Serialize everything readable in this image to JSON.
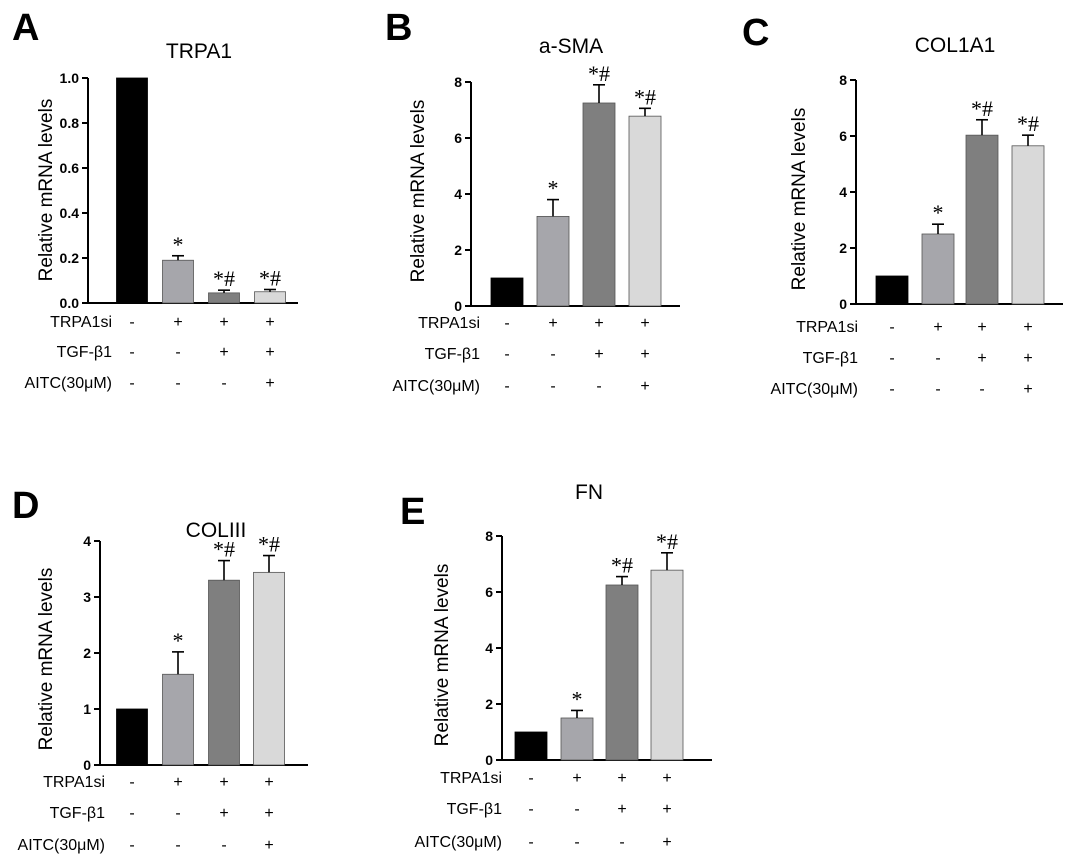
{
  "figure": {
    "background": "#ffffff"
  },
  "chart_data": [
    {
      "panel": "A",
      "type": "bar",
      "title": "TRPA1",
      "ylabel": "Relative mRNA levels",
      "ylim": [
        0,
        1.0
      ],
      "yticks": [
        "0.0",
        "0.2",
        "0.4",
        "0.6",
        "0.8",
        "1.0"
      ],
      "ytick_values": [
        0,
        0.2,
        0.4,
        0.6,
        0.8,
        1.0
      ],
      "values": [
        1.0,
        0.19,
        0.045,
        0.05
      ],
      "errors": [
        0,
        0.02,
        0.012,
        0.01
      ],
      "annotations": [
        "",
        "*",
        "*#",
        "*#"
      ],
      "colors": [
        "#000000",
        "#a6a6ab",
        "#7f7f7f",
        "#d9d9d9"
      ],
      "conditions": [
        {
          "label": "TRPA1si",
          "signs": [
            "-",
            "+",
            "+",
            "+"
          ]
        },
        {
          "label": "TGF-β1",
          "signs": [
            "-",
            "-",
            "+",
            "+"
          ]
        },
        {
          "label": "AITC(30μM)",
          "signs": [
            "-",
            "-",
            "-",
            "+"
          ]
        }
      ]
    },
    {
      "panel": "B",
      "type": "bar",
      "title": "a-SMA",
      "ylabel": "Relative mRNA levels",
      "ylim": [
        0,
        8
      ],
      "yticks": [
        "0",
        "2",
        "4",
        "6",
        "8"
      ],
      "ytick_values": [
        0,
        2,
        4,
        6,
        8
      ],
      "values": [
        1.0,
        3.2,
        7.25,
        6.78
      ],
      "errors": [
        0,
        0.6,
        0.65,
        0.28
      ],
      "annotations": [
        "",
        "*",
        "*#",
        "*#"
      ],
      "colors": [
        "#000000",
        "#a6a6ab",
        "#7f7f7f",
        "#d9d9d9"
      ],
      "conditions": [
        {
          "label": "TRPA1si",
          "signs": [
            "-",
            "+",
            "+",
            "+"
          ]
        },
        {
          "label": "TGF-β1",
          "signs": [
            "-",
            "-",
            "+",
            "+"
          ]
        },
        {
          "label": "AITC(30μM)",
          "signs": [
            "-",
            "-",
            "-",
            "+"
          ]
        }
      ]
    },
    {
      "panel": "C",
      "type": "bar",
      "title": "COL1A1",
      "ylabel": "Relative mRNA levels",
      "ylim": [
        0,
        8
      ],
      "yticks": [
        "0",
        "2",
        "4",
        "6",
        "8"
      ],
      "ytick_values": [
        0,
        2,
        4,
        6,
        8
      ],
      "values": [
        1.0,
        2.5,
        6.03,
        5.65
      ],
      "errors": [
        0,
        0.35,
        0.55,
        0.38
      ],
      "annotations": [
        "",
        "*",
        "*#",
        "*#"
      ],
      "colors": [
        "#000000",
        "#a6a6ab",
        "#7f7f7f",
        "#d9d9d9"
      ],
      "conditions": [
        {
          "label": "TRPA1si",
          "signs": [
            "-",
            "+",
            "+",
            "+"
          ]
        },
        {
          "label": "TGF-β1",
          "signs": [
            "-",
            "-",
            "+",
            "+"
          ]
        },
        {
          "label": "AITC(30μM)",
          "signs": [
            "-",
            "-",
            "-",
            "+"
          ]
        }
      ]
    },
    {
      "panel": "D",
      "type": "bar",
      "title": "COLIII",
      "ylabel": "Relative mRNA levels",
      "ylim": [
        0,
        4
      ],
      "yticks": [
        "0",
        "1",
        "2",
        "3",
        "4"
      ],
      "ytick_values": [
        0,
        1,
        2,
        3,
        4
      ],
      "values": [
        1.0,
        1.62,
        3.3,
        3.44
      ],
      "errors": [
        0,
        0.4,
        0.35,
        0.3
      ],
      "annotations": [
        "",
        "*",
        "*#",
        "*#"
      ],
      "colors": [
        "#000000",
        "#a6a6ab",
        "#7f7f7f",
        "#d9d9d9"
      ],
      "conditions": [
        {
          "label": "TRPA1si",
          "signs": [
            "-",
            "+",
            "+",
            "+"
          ]
        },
        {
          "label": "TGF-β1",
          "signs": [
            "-",
            "-",
            "+",
            "+"
          ]
        },
        {
          "label": "AITC(30μM)",
          "signs": [
            "-",
            "-",
            "-",
            "+"
          ]
        }
      ]
    },
    {
      "panel": "E",
      "type": "bar",
      "title": "FN",
      "ylabel": "Relative mRNA levels",
      "ylim": [
        0,
        8
      ],
      "yticks": [
        "0",
        "2",
        "4",
        "6",
        "8"
      ],
      "ytick_values": [
        0,
        2,
        4,
        6,
        8
      ],
      "values": [
        1.0,
        1.5,
        6.25,
        6.78
      ],
      "errors": [
        0,
        0.27,
        0.3,
        0.62
      ],
      "annotations": [
        "",
        "*",
        "*#",
        "*#"
      ],
      "colors": [
        "#000000",
        "#a6a6ab",
        "#7f7f7f",
        "#d9d9d9"
      ],
      "conditions": [
        {
          "label": "TRPA1si",
          "signs": [
            "-",
            "+",
            "+",
            "+"
          ]
        },
        {
          "label": "TGF-β1",
          "signs": [
            "-",
            "-",
            "+",
            "+"
          ]
        },
        {
          "label": "AITC(30μM)",
          "signs": [
            "-",
            "-",
            "-",
            "+"
          ]
        }
      ]
    }
  ]
}
